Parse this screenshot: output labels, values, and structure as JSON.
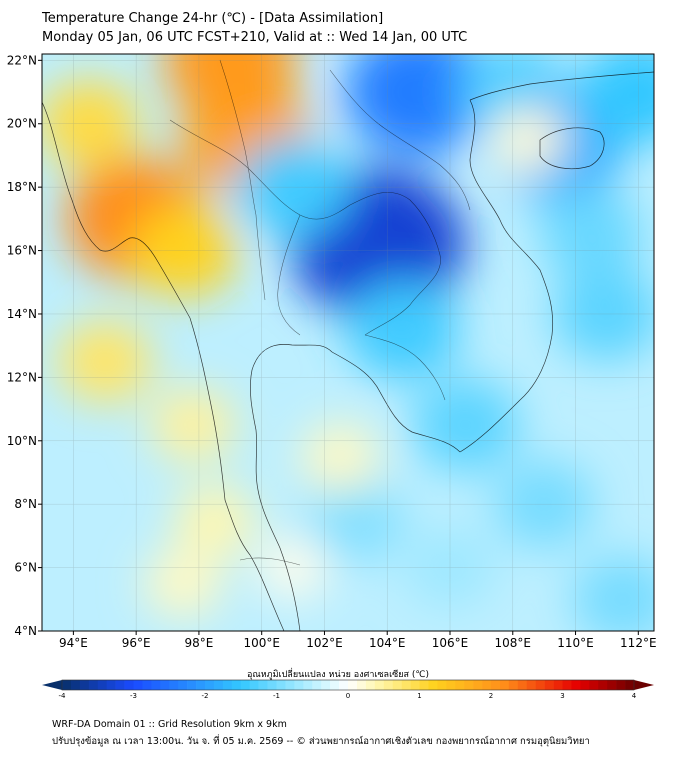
{
  "title": {
    "line1": "Temperature Change 24-hr (℃) - [Data Assimilation]",
    "line2": "Monday 05 Jan, 06 UTC FCST+210, Valid at :: Wed 14 Jan, 00 UTC"
  },
  "map": {
    "lon_labels": [
      "94°E",
      "96°E",
      "98°E",
      "100°E",
      "102°E",
      "104°E",
      "106°E",
      "108°E",
      "110°E",
      "112°E"
    ],
    "lat_labels": [
      "22°N",
      "20°N",
      "18°N",
      "16°N",
      "14°N",
      "12°N",
      "10°N",
      "8°N",
      "6°N",
      "4°N"
    ],
    "lon_values": [
      94,
      96,
      98,
      100,
      102,
      104,
      106,
      108,
      110,
      112
    ],
    "lat_values": [
      22,
      20,
      18,
      16,
      14,
      12,
      10,
      8,
      6,
      4
    ],
    "lon_range": [
      93,
      112.5
    ],
    "lat_range": [
      4,
      22.2
    ],
    "features": [
      {
        "lon": 96.0,
        "lat": 17.0,
        "value": 2.2
      },
      {
        "lon": 99.5,
        "lat": 19.6,
        "value": 1.9
      },
      {
        "lon": 99.0,
        "lat": 22.0,
        "value": 2.0
      },
      {
        "lon": 94.5,
        "lat": 20.0,
        "value": 1.0
      },
      {
        "lon": 97.5,
        "lat": 16.0,
        "value": 1.2
      },
      {
        "lon": 95.0,
        "lat": 12.5,
        "value": 0.8
      },
      {
        "lon": 97.8,
        "lat": 10.5,
        "value": 0.5
      },
      {
        "lon": 98.5,
        "lat": 7.5,
        "value": 0.4
      },
      {
        "lon": 97.5,
        "lat": 5.5,
        "value": 0.3
      },
      {
        "lon": 103.7,
        "lat": 16.2,
        "value": -3.3
      },
      {
        "lon": 105.0,
        "lat": 21.0,
        "value": -2.4
      },
      {
        "lon": 101.0,
        "lat": 18.0,
        "value": -1.4
      },
      {
        "lon": 108.0,
        "lat": 21.0,
        "value": -1.3
      },
      {
        "lon": 109.5,
        "lat": 19.3,
        "value": -1.8
      },
      {
        "lon": 104.5,
        "lat": 13.5,
        "value": -1.4
      },
      {
        "lon": 106.5,
        "lat": 10.5,
        "value": -1.2
      },
      {
        "lon": 111.0,
        "lat": 14.0,
        "value": -1.2
      },
      {
        "lon": 103.0,
        "lat": 7.5,
        "value": -0.9
      },
      {
        "lon": 109.0,
        "lat": 8.0,
        "value": -1.0
      },
      {
        "lon": 111.5,
        "lat": 5.0,
        "value": -1.0
      },
      {
        "lon": 108.5,
        "lat": 19.5,
        "value": 0.2
      },
      {
        "lon": 102.5,
        "lat": 9.5,
        "value": 0.3
      },
      {
        "lon": 101.0,
        "lat": 6.0,
        "value": 0.1
      },
      {
        "lon": 110.5,
        "lat": 16.5,
        "value": -1.1
      },
      {
        "lon": 112.0,
        "lat": 21.0,
        "value": -1.5
      },
      {
        "lon": 106.0,
        "lat": 6.0,
        "value": -0.7
      }
    ]
  },
  "colorbar": {
    "title": "อุณหภูมิเปลี่ยนแปลง หน่วย องศาเซลเซียส (℃)",
    "tick_labels": [
      "-4",
      "-3",
      "-2",
      "-1",
      "0",
      "1",
      "2",
      "3",
      "4"
    ],
    "min": -4,
    "max": 4,
    "colors": {
      "dark_blue": "#08306b",
      "blue": "#1a4bff",
      "light_blue": "#33c7ff",
      "pale_cyan": "#c8f5ff",
      "white": "#ffffff",
      "pale_yellow": "#fff7b0",
      "yellow": "#ffd21f",
      "orange": "#ff8c1a",
      "red": "#e60000",
      "dark_red": "#6b0000"
    }
  },
  "footer": {
    "line1": "WRF-DA Domain 01 :: Grid Resolution 9km x 9km",
    "line2": "ปรับปรุงข้อมูล ณ เวลา 13:00น. วัน จ. ที่ 05 ม.ค. 2569 -- © ส่วนพยากรณ์อากาศเชิงตัวเลข กองพยากรณ์อากาศ กรมอุตุนิยมวิทยา"
  }
}
